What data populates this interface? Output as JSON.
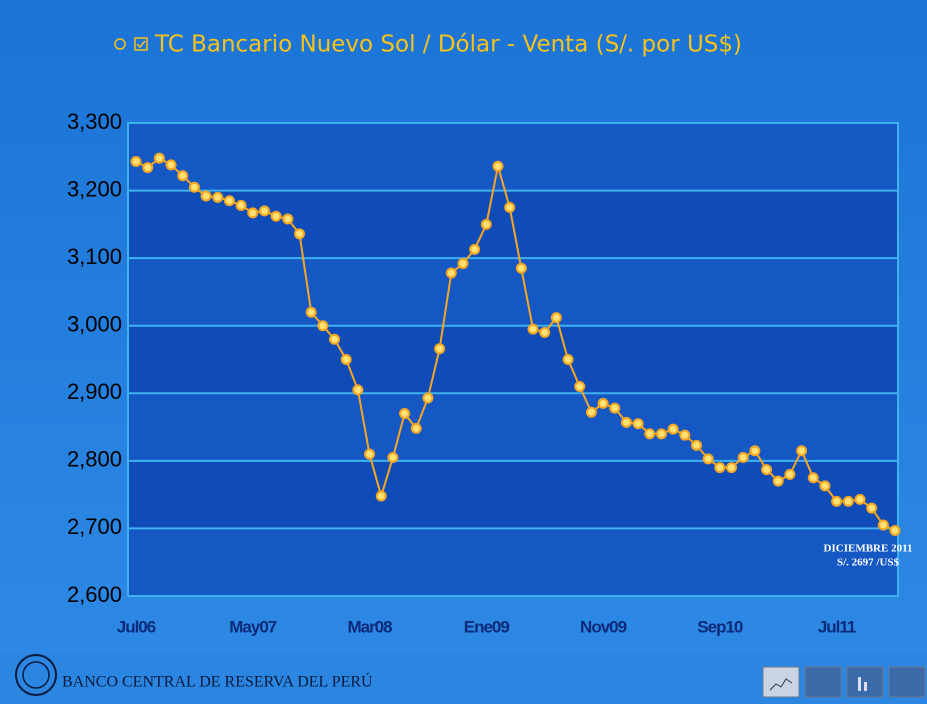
{
  "chart_data": {
    "type": "line",
    "title": "TC Bancario Nuevo Sol / Dólar - Venta (S/. por US$)",
    "categories": [
      "Jul06",
      null,
      null,
      null,
      null,
      null,
      null,
      null,
      null,
      null,
      "May07",
      null,
      null,
      null,
      null,
      null,
      null,
      null,
      null,
      null,
      "Mar08",
      null,
      null,
      null,
      null,
      null,
      null,
      null,
      null,
      null,
      "Ene09",
      null,
      null,
      null,
      null,
      null,
      null,
      null,
      null,
      null,
      "Nov09",
      null,
      null,
      null,
      null,
      null,
      null,
      null,
      null,
      null,
      "Sep10",
      null,
      null,
      null,
      null,
      null,
      null,
      null,
      null,
      null,
      "Jul11",
      null,
      null,
      null,
      null,
      null
    ],
    "values": [
      3243,
      3234,
      3248,
      3238,
      3222,
      3205,
      3192,
      3190,
      3185,
      3178,
      3167,
      3170,
      3162,
      3158,
      3136,
      3020,
      3000,
      2980,
      2950,
      2905,
      2810,
      2748,
      2805,
      2870,
      2848,
      2893,
      2966,
      3078,
      3092,
      3113,
      3150,
      3236,
      3175,
      3085,
      2995,
      2990,
      3012,
      2950,
      2910,
      2872,
      2885,
      2878,
      2857,
      2855,
      2840,
      2840,
      2847,
      2838,
      2823,
      2803,
      2790,
      2790,
      2805,
      2815,
      2787,
      2770,
      2780,
      2815,
      2775,
      2763,
      2740,
      2740,
      2743,
      2730,
      2705,
      2697
    ],
    "color": "#f5a623",
    "ylim": [
      2600,
      3300
    ],
    "yticks": [
      {
        "value": 2600,
        "label": "2,600"
      },
      {
        "value": 2700,
        "label": "2,700"
      },
      {
        "value": 2800,
        "label": "2,800"
      },
      {
        "value": 2900,
        "label": "2,900"
      },
      {
        "value": 3000,
        "label": "3,000"
      },
      {
        "value": 3100,
        "label": "3,100"
      },
      {
        "value": 3200,
        "label": "3,200"
      },
      {
        "value": 3300,
        "label": "3,300"
      }
    ],
    "grid": true,
    "annotation": [
      "DICIEMBRE 2011",
      "S/. 2697 /US$"
    ],
    "footer": "BANCO CENTRAL DE RESERVA DEL PERÚ"
  }
}
